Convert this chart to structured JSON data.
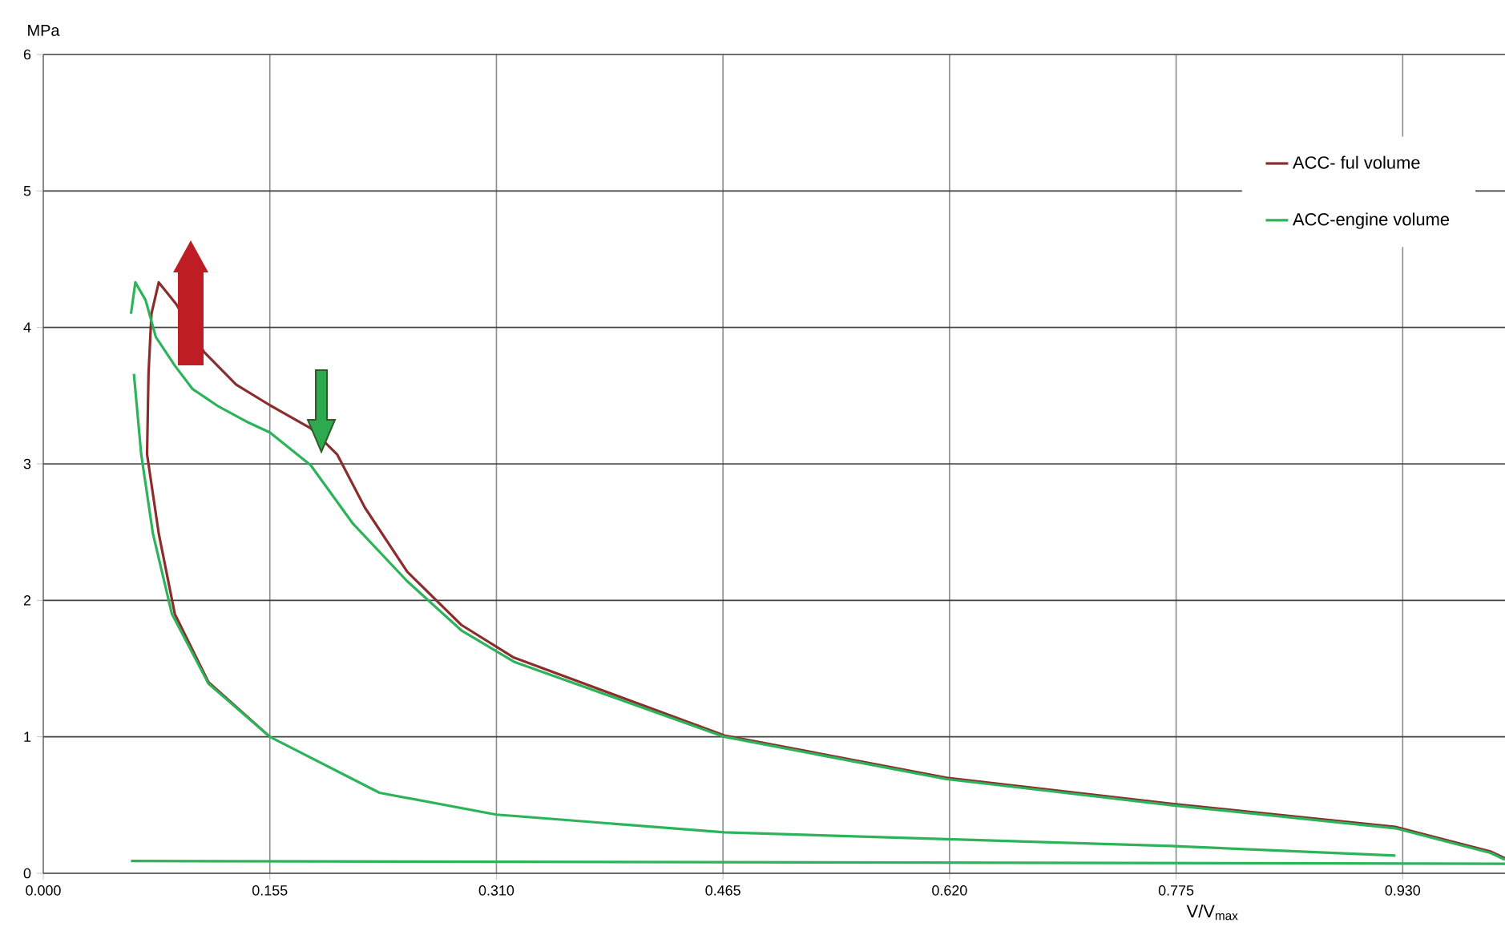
{
  "chart_data": {
    "type": "line",
    "xlabel": "V/V$_{max}$",
    "ylabel": "MPa",
    "xlim": [
      0,
      1.0
    ],
    "ylim": [
      0,
      6
    ],
    "xticks": [
      {
        "value": 0,
        "label": "0.000"
      },
      {
        "value": 0.155,
        "label": "0.155"
      },
      {
        "value": 0.31,
        "label": "0.310"
      },
      {
        "value": 0.465,
        "label": "0.465"
      },
      {
        "value": 0.62,
        "label": "0.620"
      },
      {
        "value": 0.775,
        "label": "0.775"
      },
      {
        "value": 0.93,
        "label": "0.930"
      }
    ],
    "yticks": [
      0,
      1,
      2,
      3,
      4,
      5,
      6
    ],
    "grid": true,
    "legend": "top right",
    "marker": "none",
    "line_style": "solid",
    "series": [
      {
        "name": "ACC- ful volume",
        "color": "#8b2d2d",
        "x": [
          0.155,
          0.113,
          0.09,
          0.079,
          0.071,
          0.072,
          0.074,
          0.079,
          0.091,
          0.11,
          0.132,
          0.155,
          0.183,
          0.201,
          0.22,
          0.249,
          0.286,
          0.322,
          0.466,
          0.618,
          0.771,
          0.925,
          0.99,
          1.0
        ],
        "values": [
          1.0,
          1.4,
          1.9,
          2.49,
          3.07,
          3.66,
          4.1,
          4.33,
          4.17,
          3.82,
          3.58,
          3.43,
          3.26,
          3.07,
          2.68,
          2.21,
          1.82,
          1.58,
          1.01,
          0.7,
          0.51,
          0.34,
          0.16,
          0.11
        ]
      },
      {
        "name": "ACC-engine volume",
        "color": "#2db35a",
        "x": [
          0.06,
          0.063,
          0.07,
          0.077,
          0.09,
          0.102,
          0.12,
          0.139,
          0.155,
          0.183,
          0.212,
          0.249,
          0.286,
          0.322,
          0.466,
          0.618,
          0.771,
          0.925,
          0.99,
          1.0
        ],
        "values": [
          4.1,
          4.33,
          4.2,
          3.93,
          3.72,
          3.55,
          3.42,
          3.31,
          3.23,
          2.99,
          2.56,
          2.14,
          1.78,
          1.55,
          1.0,
          0.69,
          0.5,
          0.33,
          0.15,
          0.1
        ]
      },
      {
        "color": "#2db35a",
        "x": [
          0.062,
          0.067,
          0.075,
          0.088,
          0.113,
          0.155,
          0.23,
          0.31,
          0.466,
          0.618,
          0.771,
          0.925
        ],
        "values": [
          3.66,
          3.07,
          2.49,
          1.9,
          1.39,
          1.0,
          0.59,
          0.43,
          0.3,
          0.25,
          0.2,
          0.13
        ]
      },
      {
        "color": "#2db35a",
        "x": [
          0.06,
          1.0
        ],
        "values": [
          0.09,
          0.07
        ]
      }
    ]
  }
}
